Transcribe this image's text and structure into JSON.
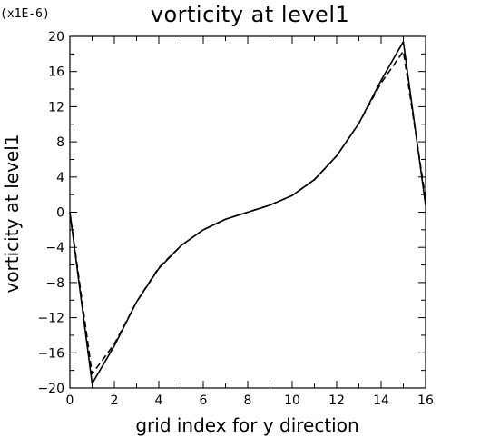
{
  "chart_data": {
    "type": "line",
    "title": "vorticity at level1",
    "xlabel": "grid index for y direction",
    "ylabel": "vorticity at level1",
    "multiplier_label": "(x1E-6)",
    "xlim": [
      0,
      16
    ],
    "ylim": [
      -20,
      20
    ],
    "xticks": [
      0,
      2,
      4,
      6,
      8,
      10,
      12,
      14,
      16
    ],
    "yticks": [
      -20,
      -16,
      -12,
      -8,
      -4,
      0,
      4,
      8,
      12,
      16,
      20
    ],
    "grid": false,
    "series": [
      {
        "x": [
          0,
          1,
          2,
          3,
          4,
          5,
          6,
          7,
          8,
          9,
          10,
          11,
          12,
          13,
          14,
          15,
          16
        ],
        "y": [
          0,
          -19.5,
          -15.2,
          -10.2,
          -6.4,
          -3.8,
          -2.0,
          -0.8,
          0.0,
          0.8,
          1.9,
          3.7,
          6.4,
          10.1,
          15.0,
          19.4,
          0.8
        ],
        "dash": "solid",
        "color": "#000000"
      },
      {
        "x": [
          0,
          1,
          2,
          3,
          4,
          5,
          6,
          7,
          8,
          9,
          10,
          11,
          12,
          13,
          14,
          15,
          16
        ],
        "y": [
          0,
          -18.4,
          -15.0,
          -10.2,
          -6.3,
          -3.8,
          -2.0,
          -0.8,
          0.0,
          0.8,
          1.9,
          3.7,
          6.4,
          10.1,
          14.7,
          18.3,
          1.5
        ],
        "dash": "dashed",
        "color": "#000000"
      }
    ]
  }
}
